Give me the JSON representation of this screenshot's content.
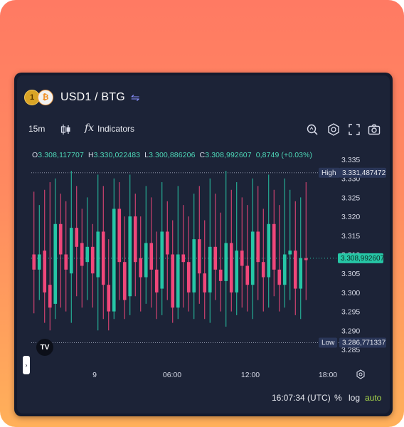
{
  "header": {
    "coin_a": "1",
    "coin_b": "₿",
    "pair": "USD1 / BTG",
    "swap_icon": "⇋"
  },
  "toolbar": {
    "interval": "15m",
    "indicators_label": "Indicators",
    "fx_label": "fx"
  },
  "ohlc": {
    "o_label": "O",
    "o": "3.308,117707",
    "h_label": "H",
    "h": "3.330,022483",
    "l_label": "L",
    "l": "3.300,886206",
    "c_label": "C",
    "c": "3.308,992607",
    "change": "0,8749 (+0.03%)"
  },
  "price_axis": {
    "ticks": [
      "3.335",
      "3.330",
      "3.325",
      "3.320",
      "3.315",
      "3.310",
      "3.305",
      "3.300",
      "3.295",
      "3.290",
      "3.285"
    ],
    "high_label": "High",
    "high_value": "3.331,487472",
    "low_label": "Low",
    "low_value": "3.286,771337",
    "current_value": "3.308,992607"
  },
  "time_axis": {
    "ticks": [
      "9",
      "06:00",
      "12:00",
      "18:00"
    ]
  },
  "bottom": {
    "clock": "16:07:34 (UTC)",
    "percent": "%",
    "log": "log",
    "auto": "auto"
  },
  "logo": "TV",
  "colors": {
    "up": "#26c6a6",
    "down": "#f0477a",
    "bg": "#1c2337",
    "accent_auto": "#a8d84a"
  },
  "chart_data": {
    "type": "candlestick",
    "ylim": [
      3.2835,
      3.3365
    ],
    "ticks": [
      3.335,
      3.33,
      3.325,
      3.32,
      3.315,
      3.31,
      3.305,
      3.3,
      3.295,
      3.29,
      3.285
    ],
    "high": 3.331487,
    "low": 3.286771,
    "last": 3.308993,
    "candles": [
      [
        3.31,
        3.306,
        3.3265,
        3.2945
      ],
      [
        3.306,
        3.31,
        3.323,
        3.298
      ],
      [
        3.311,
        3.3,
        3.327,
        3.292
      ],
      [
        3.302,
        3.296,
        3.329,
        3.29
      ],
      [
        3.297,
        3.318,
        3.33,
        3.293
      ],
      [
        3.318,
        3.31,
        3.326,
        3.296
      ],
      [
        3.31,
        3.306,
        3.324,
        3.295
      ],
      [
        3.305,
        3.317,
        3.332,
        3.292
      ],
      [
        3.317,
        3.312,
        3.328,
        3.299
      ],
      [
        3.313,
        3.307,
        3.322,
        3.296
      ],
      [
        3.308,
        3.312,
        3.325,
        3.298
      ],
      [
        3.312,
        3.305,
        3.318,
        3.296
      ],
      [
        3.304,
        3.316,
        3.331,
        3.29
      ],
      [
        3.316,
        3.302,
        3.328,
        3.293
      ],
      [
        3.302,
        3.295,
        3.314,
        3.29
      ],
      [
        3.295,
        3.322,
        3.33,
        3.293
      ],
      [
        3.322,
        3.308,
        3.329,
        3.298
      ],
      [
        3.308,
        3.298,
        3.32,
        3.293
      ],
      [
        3.299,
        3.32,
        3.331,
        3.294
      ],
      [
        3.32,
        3.308,
        3.326,
        3.299
      ],
      [
        3.309,
        3.304,
        3.32,
        3.295
      ],
      [
        3.304,
        3.313,
        3.328,
        3.297
      ],
      [
        3.313,
        3.306,
        3.325,
        3.296
      ],
      [
        3.306,
        3.3,
        3.316,
        3.293
      ],
      [
        3.301,
        3.316,
        3.329,
        3.294
      ],
      [
        3.316,
        3.31,
        3.324,
        3.298
      ],
      [
        3.31,
        3.296,
        3.319,
        3.292
      ],
      [
        3.296,
        3.31,
        3.328,
        3.293
      ],
      [
        3.31,
        3.308,
        3.323,
        3.296
      ],
      [
        3.308,
        3.3,
        3.32,
        3.295
      ],
      [
        3.3,
        3.314,
        3.326,
        3.293
      ],
      [
        3.314,
        3.305,
        3.328,
        3.297
      ],
      [
        3.305,
        3.3,
        3.319,
        3.293
      ],
      [
        3.3,
        3.312,
        3.33,
        3.292
      ],
      [
        3.312,
        3.306,
        3.326,
        3.298
      ],
      [
        3.306,
        3.303,
        3.321,
        3.295
      ],
      [
        3.303,
        3.313,
        3.332,
        3.291
      ],
      [
        3.313,
        3.3,
        3.327,
        3.295
      ],
      [
        3.3,
        3.311,
        3.329,
        3.294
      ],
      [
        3.311,
        3.307,
        3.325,
        3.296
      ],
      [
        3.307,
        3.302,
        3.323,
        3.295
      ],
      [
        3.302,
        3.316,
        3.33,
        3.293
      ],
      [
        3.316,
        3.308,
        3.328,
        3.298
      ],
      [
        3.308,
        3.304,
        3.322,
        3.295
      ],
      [
        3.304,
        3.318,
        3.331,
        3.296
      ],
      [
        3.318,
        3.306,
        3.327,
        3.299
      ],
      [
        3.306,
        3.302,
        3.323,
        3.295
      ],
      [
        3.302,
        3.31,
        3.33,
        3.296
      ],
      [
        3.31,
        3.311,
        3.327,
        3.298
      ],
      [
        3.311,
        3.301,
        3.324,
        3.294
      ],
      [
        3.301,
        3.309,
        3.325,
        3.293
      ],
      [
        3.309,
        3.3085,
        3.329,
        3.298
      ]
    ]
  }
}
